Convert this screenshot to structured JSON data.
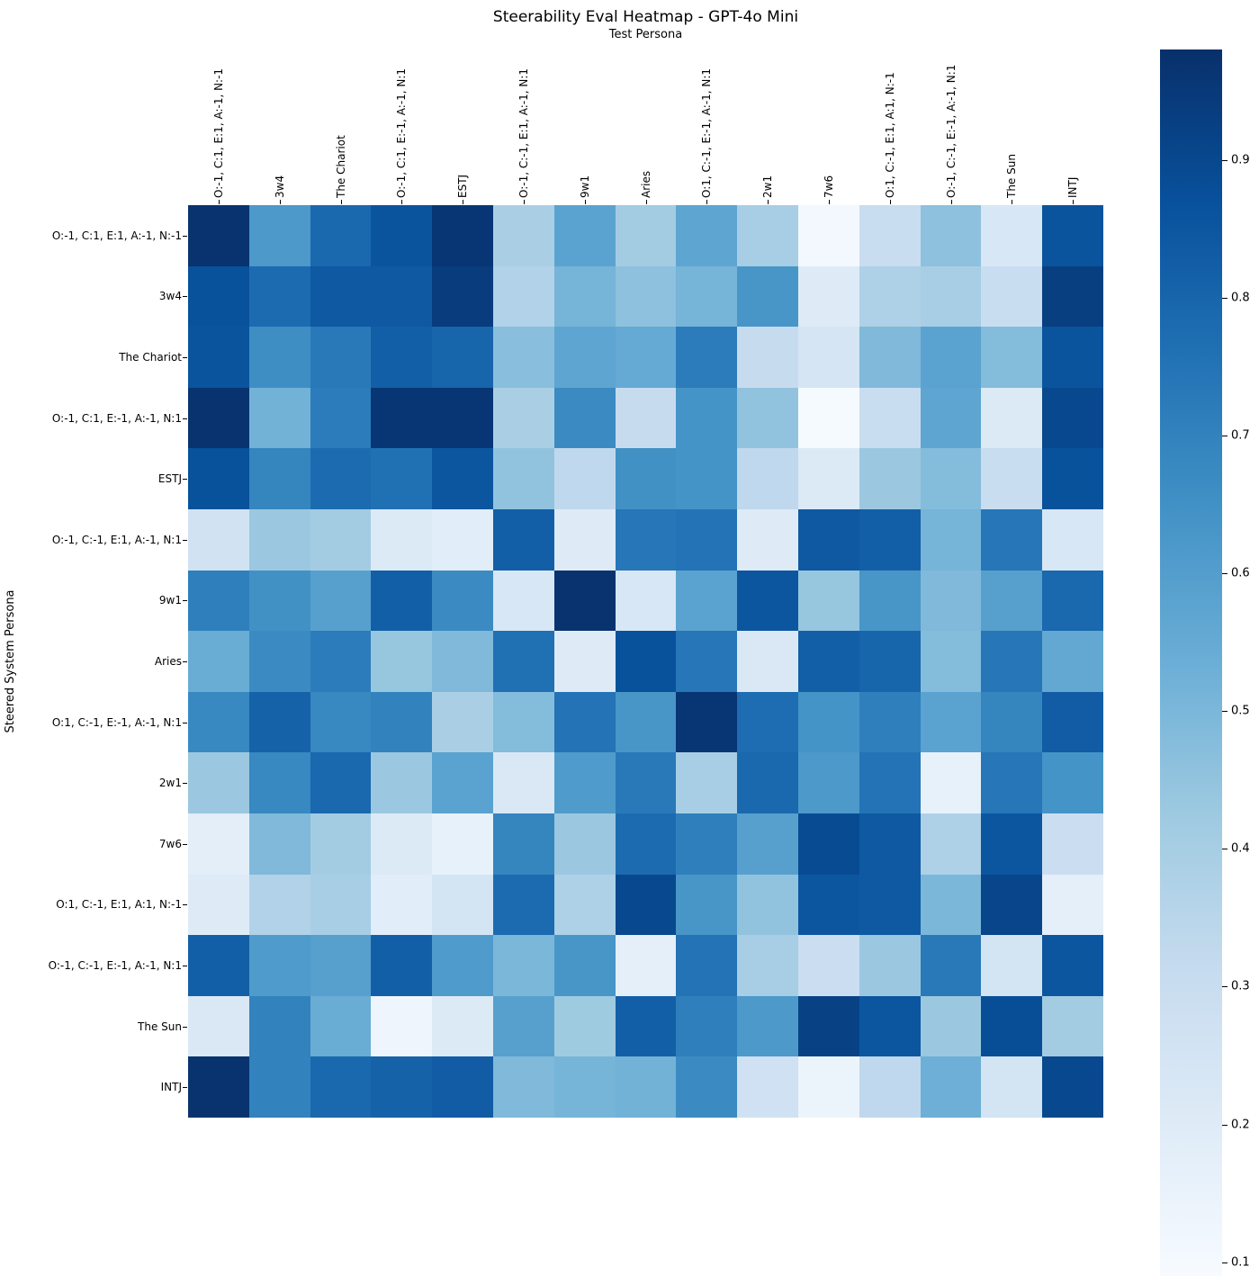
{
  "title": "Steerability Eval Heatmap - GPT-4o Mini",
  "x_axis_label": "Test Persona",
  "y_axis_label": "Steered System Persona",
  "chart_data": {
    "type": "heatmap",
    "title": "Steerability Eval Heatmap - GPT-4o Mini",
    "xlabel": "Test Persona",
    "ylabel": "Steered System Persona",
    "colormap": "Blues",
    "vmin": 0.09,
    "vmax": 0.98,
    "grid": false,
    "legend_position": "right-colorbar",
    "colormap_stops": [
      "#f7fbff",
      "#deebf7",
      "#c6dbef",
      "#9ecae1",
      "#6baed6",
      "#4292c6",
      "#2171b5",
      "#08519c",
      "#08306b"
    ],
    "x_labels": [
      "O:-1, C:1, E:1, A:-1, N:-1",
      "3w4",
      "The Chariot",
      "O:-1, C:1, E:-1, A:-1, N:1",
      "ESTJ",
      "O:-1, C:-1, E:1, A:-1, N:1",
      "9w1",
      "Aries",
      "O:1, C:-1, E:-1, A:-1, N:1",
      "2w1",
      "7w6",
      "O:1, C:-1, E:1, A:1, N:-1",
      "O:-1, C:-1, E:-1, A:-1, N:1",
      "The Sun",
      "INTJ"
    ],
    "y_labels": [
      "O:-1, C:1, E:1, A:-1, N:-1",
      "3w4",
      "The Chariot",
      "O:-1, C:1, E:-1, A:-1, N:1",
      "ESTJ",
      "O:-1, C:-1, E:1, A:-1, N:1",
      "9w1",
      "Aries",
      "O:1, C:-1, E:-1, A:-1, N:1",
      "2w1",
      "7w6",
      "O:1, C:-1, E:1, A:1, N:-1",
      "O:-1, C:-1, E:-1, A:-1, N:1",
      "The Sun",
      "INTJ"
    ],
    "values": [
      [
        0.97,
        0.62,
        0.79,
        0.86,
        0.96,
        0.39,
        0.58,
        0.41,
        0.57,
        0.4,
        0.11,
        0.3,
        0.46,
        0.23,
        0.86
      ],
      [
        0.87,
        0.78,
        0.84,
        0.84,
        0.94,
        0.37,
        0.51,
        0.46,
        0.51,
        0.63,
        0.2,
        0.38,
        0.4,
        0.3,
        0.93
      ],
      [
        0.86,
        0.66,
        0.73,
        0.82,
        0.8,
        0.47,
        0.57,
        0.55,
        0.72,
        0.31,
        0.24,
        0.49,
        0.58,
        0.48,
        0.86
      ],
      [
        0.97,
        0.52,
        0.72,
        0.96,
        0.96,
        0.39,
        0.67,
        0.31,
        0.64,
        0.45,
        0.1,
        0.3,
        0.57,
        0.21,
        0.9
      ],
      [
        0.87,
        0.69,
        0.78,
        0.76,
        0.85,
        0.45,
        0.33,
        0.65,
        0.64,
        0.33,
        0.21,
        0.43,
        0.48,
        0.3,
        0.87
      ],
      [
        0.26,
        0.43,
        0.41,
        0.21,
        0.19,
        0.82,
        0.2,
        0.74,
        0.75,
        0.2,
        0.84,
        0.82,
        0.51,
        0.74,
        0.23
      ],
      [
        0.71,
        0.65,
        0.59,
        0.82,
        0.67,
        0.23,
        0.97,
        0.23,
        0.58,
        0.85,
        0.44,
        0.63,
        0.49,
        0.59,
        0.79
      ],
      [
        0.54,
        0.67,
        0.72,
        0.44,
        0.49,
        0.76,
        0.2,
        0.87,
        0.74,
        0.22,
        0.82,
        0.8,
        0.48,
        0.74,
        0.56
      ],
      [
        0.68,
        0.81,
        0.68,
        0.7,
        0.39,
        0.48,
        0.75,
        0.63,
        0.96,
        0.77,
        0.64,
        0.71,
        0.58,
        0.69,
        0.83
      ],
      [
        0.43,
        0.68,
        0.79,
        0.43,
        0.58,
        0.22,
        0.61,
        0.73,
        0.4,
        0.79,
        0.62,
        0.75,
        0.16,
        0.74,
        0.64
      ],
      [
        0.18,
        0.49,
        0.41,
        0.21,
        0.16,
        0.69,
        0.43,
        0.78,
        0.71,
        0.59,
        0.89,
        0.84,
        0.38,
        0.85,
        0.29
      ],
      [
        0.2,
        0.37,
        0.4,
        0.19,
        0.25,
        0.78,
        0.38,
        0.9,
        0.63,
        0.45,
        0.85,
        0.84,
        0.5,
        0.91,
        0.17
      ],
      [
        0.82,
        0.61,
        0.59,
        0.82,
        0.61,
        0.5,
        0.63,
        0.17,
        0.75,
        0.4,
        0.29,
        0.43,
        0.73,
        0.25,
        0.85
      ],
      [
        0.22,
        0.7,
        0.54,
        0.13,
        0.21,
        0.59,
        0.42,
        0.82,
        0.71,
        0.62,
        0.92,
        0.85,
        0.43,
        0.88,
        0.41
      ],
      [
        0.97,
        0.7,
        0.79,
        0.81,
        0.83,
        0.49,
        0.51,
        0.52,
        0.67,
        0.27,
        0.14,
        0.33,
        0.53,
        0.25,
        0.9
      ]
    ],
    "colorbar_ticks": [
      0.9,
      0.8,
      0.7,
      0.6,
      0.5,
      0.4,
      0.3,
      0.2,
      0.1
    ]
  }
}
